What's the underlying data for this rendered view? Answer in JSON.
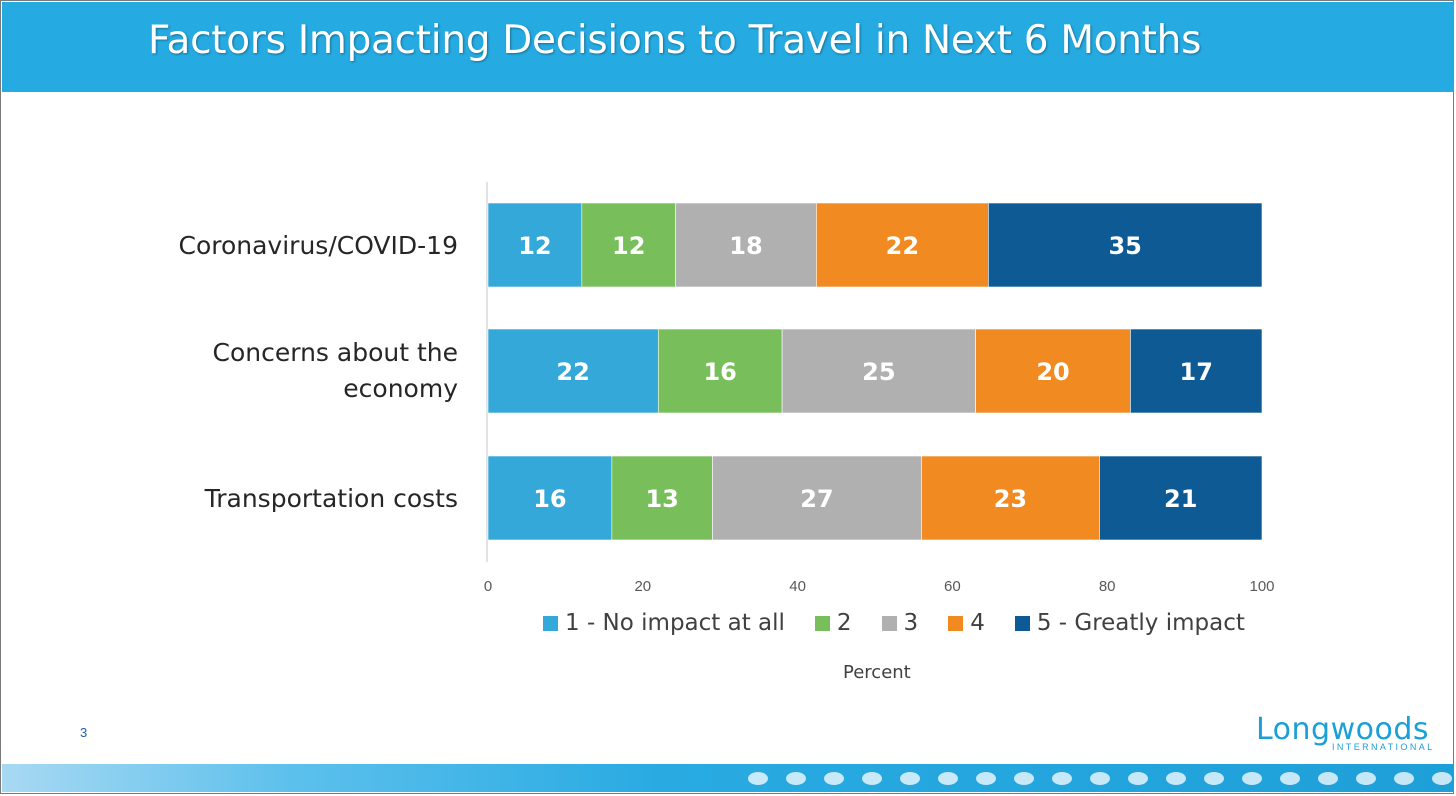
{
  "slide": {
    "title": "Factors Impacting Decisions to Travel in Next 6 Months",
    "page_number": "3",
    "logo": {
      "word": "Longwoods",
      "sub": "INTERNATIONAL"
    }
  },
  "colors": {
    "header": "#25abe2",
    "series": [
      "#34a8d8",
      "#78bf5b",
      "#b0b0b0",
      "#f08a21",
      "#0d5a94"
    ]
  },
  "chart_data": {
    "type": "bar",
    "orientation": "horizontal",
    "stacked": true,
    "title": "Factors Impacting Decisions to Travel in Next 6 Months",
    "categories": [
      "Coronavirus/COVID-19",
      "Concerns about the economy",
      "Transportation costs"
    ],
    "series": [
      {
        "name": "1 - No impact at all",
        "values": [
          12,
          22,
          16
        ]
      },
      {
        "name": "2",
        "values": [
          12,
          16,
          13
        ]
      },
      {
        "name": "3",
        "values": [
          18,
          25,
          27
        ]
      },
      {
        "name": "4",
        "values": [
          22,
          20,
          23
        ]
      },
      {
        "name": "5 - Greatly impact",
        "values": [
          35,
          17,
          21
        ]
      }
    ],
    "xlabel": "Percent",
    "ylabel": "",
    "xlim": [
      0,
      100
    ],
    "xticks": [
      "0",
      "20",
      "40",
      "60",
      "80",
      "100"
    ],
    "grid": false,
    "legend_position": "bottom",
    "data_labels": true
  }
}
